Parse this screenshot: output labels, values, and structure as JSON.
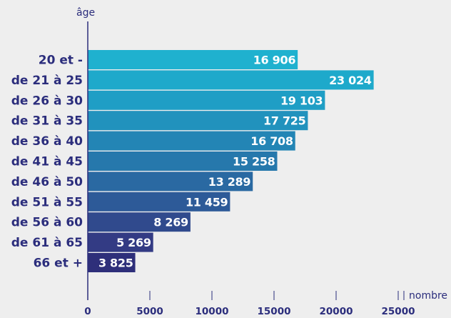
{
  "chart_data": {
    "type": "bar",
    "orientation": "horizontal",
    "ylabel": "âge",
    "xlabel": "nombre",
    "categories": [
      "20 et -",
      "de 21 à 25",
      "de 26 à 30",
      "de 31 à 35",
      "de 36 à 40",
      "de 41 à 45",
      "de 46 à 50",
      "de 51 à 55",
      "de 56 à 60",
      "de 61 à 65",
      "66 et +"
    ],
    "values": [
      16906,
      23024,
      19103,
      17725,
      16708,
      15258,
      13289,
      11459,
      8269,
      5269,
      3825
    ],
    "value_labels": [
      "16 906",
      "23 024",
      "19 103",
      "17 725",
      "16 708",
      "15 258",
      "13 289",
      "11 459",
      "8 269",
      "5 269",
      "3 825"
    ],
    "xlim": [
      0,
      25000
    ],
    "xticks": [
      0,
      5000,
      10000,
      15000,
      20000,
      25000
    ],
    "xtick_labels": [
      "0",
      "5000",
      "10000",
      "15000",
      "20000",
      "25000"
    ],
    "bar_colors": [
      "#1fb1cf",
      "#1ea9cb",
      "#1f9ec5",
      "#2192bd",
      "#2385b5",
      "#2678ac",
      "#2a69a2",
      "#2d5a98",
      "#304a8d",
      "#333b84",
      "#2e2f7a"
    ],
    "grid": false,
    "legend": "none"
  }
}
